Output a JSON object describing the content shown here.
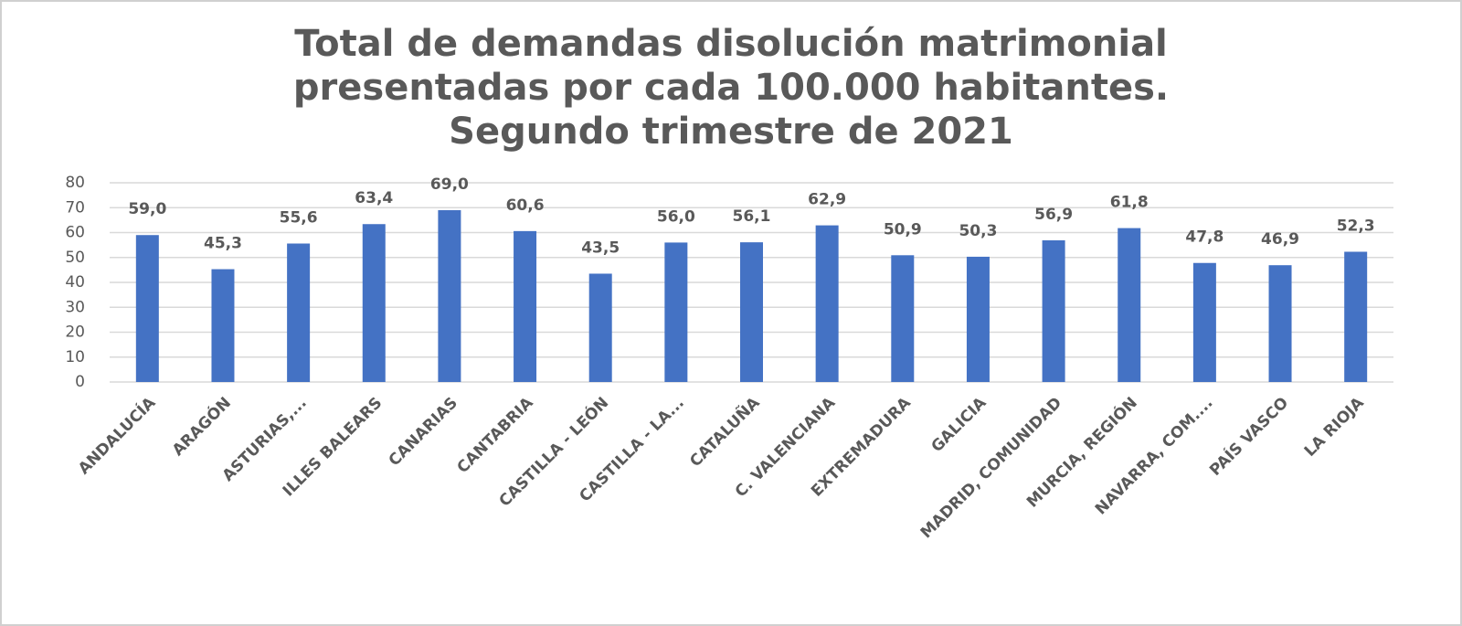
{
  "chart_data": {
    "type": "bar",
    "title": [
      "Total de demandas disolución matrimonial",
      "presentadas por cada 100.000 habitantes.",
      "Segundo trimestre de 2021"
    ],
    "categories": [
      "ANDALUCÍA",
      "ARAGÓN",
      "ASTURIAS,...",
      "ILLES BALEARS",
      "CANARIAS",
      "CANTABRIA",
      "CASTILLA - LEÓN",
      "CASTILLA - LA...",
      "CATALUÑA",
      "C. VALENCIANA",
      "EXTREMADURA",
      "GALICIA",
      "MADRID, COMUNIDAD",
      "MURCIA, REGIÓN",
      "NAVARRA, COM....",
      "PAÍS VASCO",
      "LA RIOJA"
    ],
    "values": [
      59.0,
      45.3,
      55.6,
      63.4,
      69.0,
      60.6,
      43.5,
      56.0,
      56.1,
      62.9,
      50.9,
      50.3,
      56.9,
      61.8,
      47.8,
      46.9,
      52.3
    ],
    "value_labels": [
      "59,0",
      "45,3",
      "55,6",
      "63,4",
      "69,0",
      "60,6",
      "43,5",
      "56,0",
      "56,1",
      "62,9",
      "50,9",
      "50,3",
      "56,9",
      "61,8",
      "47,8",
      "46,9",
      "52,3"
    ],
    "color": "#4472c4",
    "ylim": [
      0,
      80
    ],
    "yticks": [
      0,
      10,
      20,
      30,
      40,
      50,
      60,
      70,
      80
    ],
    "grid": true
  }
}
